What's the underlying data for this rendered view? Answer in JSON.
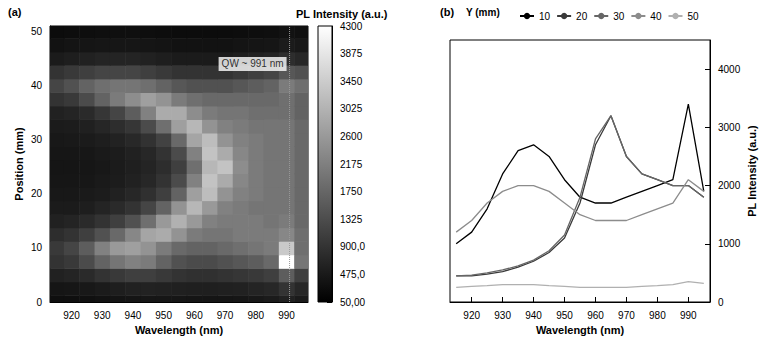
{
  "chart_data": [
    {
      "type": "heatmap",
      "title": "(a)",
      "xlabel": "Wavelength (nm)",
      "ylabel": "Position (mm)",
      "x": [
        915,
        920,
        925,
        930,
        935,
        940,
        945,
        950,
        955,
        960,
        965,
        970,
        975,
        980,
        985,
        990,
        995
      ],
      "y": [
        0,
        2.5,
        5,
        7.5,
        10,
        12.5,
        15,
        17.5,
        20,
        22.5,
        25,
        27.5,
        30,
        32.5,
        35,
        37.5,
        40,
        42.5,
        45,
        47.5,
        50
      ],
      "cells": [
        [
          300,
          300,
          320,
          350,
          380,
          400,
          420,
          420,
          420,
          400,
          400,
          400,
          420,
          450,
          500,
          600,
          500
        ],
        [
          400,
          420,
          450,
          500,
          550,
          600,
          620,
          600,
          580,
          560,
          560,
          580,
          600,
          650,
          700,
          900,
          700
        ],
        [
          600,
          650,
          750,
          900,
          1000,
          1100,
          1100,
          1000,
          900,
          850,
          850,
          900,
          950,
          1000,
          1100,
          1600,
          1100
        ],
        [
          900,
          1000,
          1300,
          1700,
          2000,
          2200,
          2100,
          1700,
          1400,
          1300,
          1300,
          1400,
          1500,
          1600,
          1800,
          4300,
          2000
        ],
        [
          1000,
          1200,
          1600,
          2200,
          2600,
          2700,
          2500,
          2100,
          1800,
          1700,
          1700,
          1800,
          1900,
          2000,
          2100,
          3400,
          1900
        ],
        [
          800,
          900,
          1100,
          1400,
          1800,
          2300,
          2800,
          2900,
          2500,
          2100,
          2000,
          2000,
          2100,
          2100,
          2100,
          2300,
          1900
        ],
        [
          600,
          650,
          750,
          900,
          1100,
          1400,
          1900,
          2600,
          3000,
          2600,
          2200,
          2100,
          2100,
          2100,
          2000,
          2100,
          1800
        ],
        [
          500,
          500,
          550,
          650,
          750,
          900,
          1200,
          1700,
          2500,
          3100,
          2600,
          2200,
          2100,
          2000,
          2000,
          2000,
          1800
        ],
        [
          450,
          450,
          480,
          520,
          600,
          700,
          850,
          1100,
          1700,
          2700,
          3200,
          2500,
          2200,
          2100,
          2000,
          2000,
          1800
        ],
        [
          420,
          420,
          440,
          480,
          520,
          600,
          700,
          900,
          1300,
          2200,
          3300,
          2900,
          2300,
          2100,
          2000,
          2000,
          1800
        ],
        [
          400,
          400,
          420,
          450,
          500,
          560,
          650,
          800,
          1100,
          1900,
          3100,
          3300,
          2400,
          2100,
          2000,
          2000,
          1800
        ],
        [
          420,
          420,
          440,
          480,
          520,
          600,
          700,
          900,
          1300,
          2200,
          3300,
          2900,
          2300,
          2100,
          2000,
          2000,
          1800
        ],
        [
          450,
          460,
          500,
          550,
          620,
          720,
          880,
          1150,
          1800,
          2800,
          3200,
          2500,
          2200,
          2100,
          2000,
          2000,
          1800
        ],
        [
          500,
          520,
          580,
          680,
          800,
          950,
          1300,
          1900,
          2700,
          3100,
          2500,
          2200,
          2100,
          2000,
          2000,
          2000,
          1800
        ],
        [
          600,
          650,
          750,
          950,
          1200,
          1600,
          2200,
          2900,
          2900,
          2400,
          2100,
          2000,
          2000,
          1900,
          1900,
          1900,
          1700
        ],
        [
          900,
          1000,
          1300,
          1700,
          2100,
          2400,
          2700,
          2500,
          2100,
          1900,
          1800,
          1800,
          1800,
          1800,
          1800,
          1900,
          1700
        ],
        [
          1200,
          1400,
          1700,
          1900,
          2000,
          2000,
          1900,
          1700,
          1500,
          1400,
          1400,
          1400,
          1500,
          1600,
          1700,
          2100,
          1900
        ],
        [
          900,
          1000,
          1100,
          1200,
          1200,
          1200,
          1100,
          1000,
          900,
          900,
          900,
          900,
          1000,
          1100,
          1200,
          1500,
          1400
        ],
        [
          500,
          550,
          600,
          650,
          650,
          650,
          600,
          550,
          500,
          500,
          500,
          500,
          550,
          600,
          650,
          800,
          700
        ],
        [
          350,
          380,
          400,
          420,
          420,
          420,
          400,
          380,
          350,
          350,
          350,
          350,
          380,
          400,
          420,
          500,
          450
        ],
        [
          250,
          270,
          280,
          300,
          300,
          300,
          280,
          270,
          250,
          250,
          250,
          250,
          270,
          280,
          300,
          350,
          320
        ]
      ],
      "xlim": [
        913,
        997
      ],
      "ylim": [
        0,
        51
      ],
      "xticks": [
        920,
        930,
        940,
        950,
        960,
        970,
        980,
        990
      ],
      "yticks": [
        0,
        10,
        20,
        30,
        40,
        50
      ],
      "colorbar": {
        "label": "PL Intensity (a.u.)",
        "range": [
          50,
          4300
        ],
        "ticks": [
          {
            "value": 50,
            "label": "50,00"
          },
          {
            "value": 475,
            "label": "475,0"
          },
          {
            "value": 900,
            "label": "900,0"
          },
          1325,
          1750,
          2175,
          2600,
          3025,
          3450,
          3875,
          4300
        ]
      },
      "annotations": [
        {
          "text": "QW ~ 991 nm",
          "x": 991,
          "y": 44
        }
      ]
    },
    {
      "type": "line",
      "title": "(b)",
      "xlabel": "Wavelength (nm)",
      "ylabel": "PL Intensity (a.u.)",
      "legend_title": "Y (mm)",
      "legend": "top",
      "x": [
        915,
        920,
        925,
        930,
        935,
        940,
        945,
        950,
        955,
        960,
        965,
        970,
        975,
        980,
        985,
        990,
        995
      ],
      "series": [
        {
          "name": "10",
          "color": "#000000",
          "values": [
            1000,
            1200,
            1600,
            2200,
            2600,
            2700,
            2500,
            2100,
            1800,
            1700,
            1700,
            1800,
            1900,
            2000,
            2100,
            3400,
            1900
          ]
        },
        {
          "name": "20",
          "color": "#3a3a3a",
          "values": [
            450,
            450,
            480,
            520,
            600,
            700,
            850,
            1100,
            1700,
            2700,
            3200,
            2500,
            2200,
            2100,
            2000,
            2000,
            1800
          ]
        },
        {
          "name": "30",
          "color": "#666666",
          "values": [
            450,
            460,
            500,
            550,
            620,
            720,
            880,
            1150,
            1800,
            2800,
            3200,
            2500,
            2200,
            2100,
            2000,
            2000,
            1800
          ]
        },
        {
          "name": "40",
          "color": "#8c8c8c",
          "values": [
            1200,
            1400,
            1700,
            1900,
            2000,
            2000,
            1900,
            1700,
            1500,
            1400,
            1400,
            1400,
            1500,
            1600,
            1700,
            2100,
            1900
          ]
        },
        {
          "name": "50",
          "color": "#b0b0b0",
          "values": [
            250,
            270,
            280,
            300,
            300,
            300,
            280,
            270,
            250,
            250,
            250,
            250,
            270,
            280,
            300,
            350,
            320
          ]
        }
      ],
      "xlim": [
        913,
        997
      ],
      "ylim": [
        0,
        4500
      ],
      "xticks": [
        920,
        930,
        940,
        950,
        960,
        970,
        980,
        990
      ],
      "yticks": [
        0,
        1000,
        2000,
        3000,
        4000
      ]
    }
  ]
}
